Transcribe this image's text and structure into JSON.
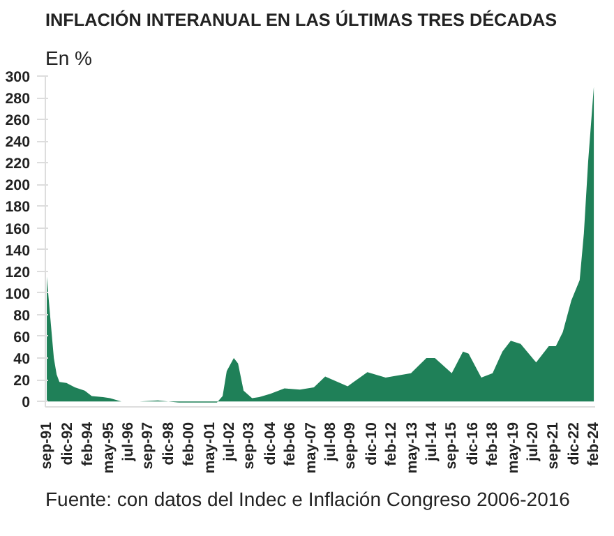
{
  "chart_data": {
    "type": "area",
    "title": "INFLACIÓN INTERANUAL EN LAS ÚLTIMAS TRES DÉCADAS",
    "subtitle": "En %",
    "annotations": [
      "Fuente: con datos del Indec e Inflación Congreso 2006-2016"
    ],
    "x": [
      "1991-09",
      "1991-10",
      "1991-12",
      "1992-02",
      "1992-04",
      "1992-06",
      "1992-11",
      "1993-05",
      "1993-12",
      "1994-05",
      "1995-01",
      "1995-06",
      "1996-02",
      "1997-03",
      "1998-04",
      "1999-07",
      "2000-08",
      "2001-10",
      "2002-02",
      "2002-05",
      "2002-10",
      "2003-01",
      "2003-05",
      "2003-11",
      "2004-04",
      "2004-12",
      "2005-10",
      "2006-09",
      "2007-07",
      "2008-03",
      "2009-07",
      "2010-09",
      "2011-10",
      "2013-04",
      "2014-03",
      "2014-09",
      "2015-09",
      "2016-05",
      "2016-09",
      "2017-06",
      "2018-02",
      "2018-09",
      "2019-03",
      "2019-10",
      "2020-09",
      "2021-06",
      "2021-11",
      "2022-04",
      "2022-10",
      "2023-04",
      "2023-07",
      "2023-10",
      "2024-02"
    ],
    "series": [
      {
        "color": "#1f8058",
        "values": [
          115,
          100,
          70,
          40,
          25,
          18,
          17,
          13,
          10,
          5,
          4,
          3,
          0,
          0,
          1,
          -1,
          -1,
          -1,
          5,
          28,
          40,
          35,
          10,
          3,
          4,
          7,
          12,
          11,
          13,
          23,
          14,
          27,
          22,
          26,
          40,
          40,
          26,
          46,
          44,
          22,
          26,
          46,
          56,
          53,
          36,
          51,
          51,
          64,
          93,
          112,
          155,
          221,
          290
        ]
      }
    ],
    "xlim": [
      "1991-08",
      "2024-03"
    ],
    "xticks": [
      {
        "value": "1991-09",
        "label": "sep-91"
      },
      {
        "value": "1992-12",
        "label": "dic-92"
      },
      {
        "value": "1994-02",
        "label": "feb-94"
      },
      {
        "value": "1995-05",
        "label": "may-95"
      },
      {
        "value": "1996-07",
        "label": "jul-96"
      },
      {
        "value": "1997-09",
        "label": "sep-97"
      },
      {
        "value": "1998-12",
        "label": "dic-98"
      },
      {
        "value": "2000-02",
        "label": "feb-00"
      },
      {
        "value": "2001-05",
        "label": "may-01"
      },
      {
        "value": "2002-07",
        "label": "jul-02"
      },
      {
        "value": "2003-09",
        "label": "sep-03"
      },
      {
        "value": "2004-12",
        "label": "dic-04"
      },
      {
        "value": "2006-02",
        "label": "feb-06"
      },
      {
        "value": "2007-05",
        "label": "may-07"
      },
      {
        "value": "2008-07",
        "label": "jul-08"
      },
      {
        "value": "2009-09",
        "label": "sep-09"
      },
      {
        "value": "2010-12",
        "label": "dic-10"
      },
      {
        "value": "2012-02",
        "label": "feb-12"
      },
      {
        "value": "2013-05",
        "label": "may-13"
      },
      {
        "value": "2014-07",
        "label": "jul-14"
      },
      {
        "value": "2015-09",
        "label": "sep-15"
      },
      {
        "value": "2016-12",
        "label": "dic-16"
      },
      {
        "value": "2018-02",
        "label": "feb-18"
      },
      {
        "value": "2019-05",
        "label": "may-19"
      },
      {
        "value": "2020-07",
        "label": "jul-20"
      },
      {
        "value": "2021-09",
        "label": "sep-21"
      },
      {
        "value": "2022-12",
        "label": "dic-22"
      },
      {
        "value": "2024-02",
        "label": "feb-24"
      }
    ],
    "ylim": [
      -5,
      300
    ],
    "yticks": [
      0,
      20,
      40,
      60,
      80,
      100,
      120,
      140,
      160,
      180,
      200,
      220,
      240,
      260,
      280,
      300
    ],
    "grid": false
  }
}
